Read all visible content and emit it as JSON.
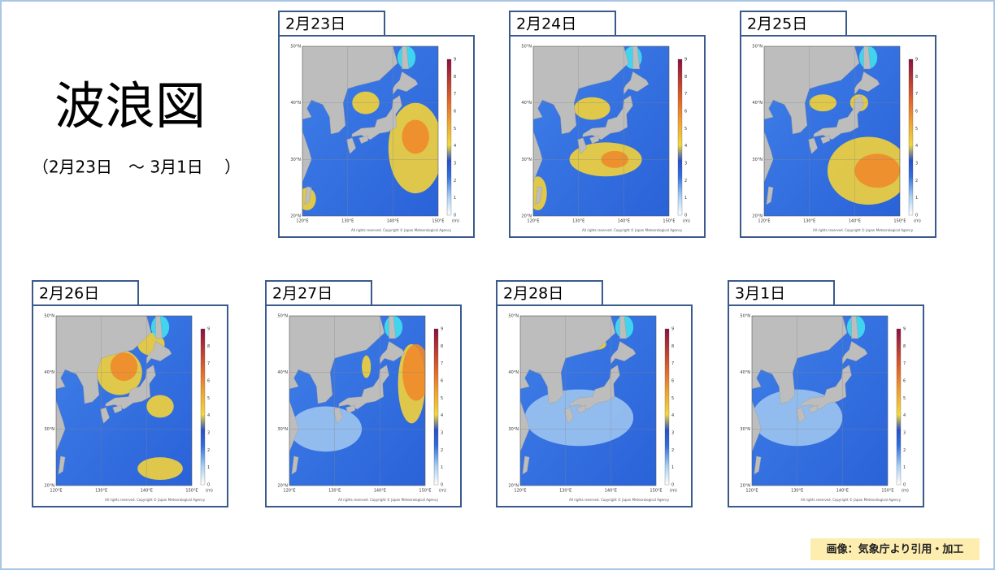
{
  "header": {
    "title": "波浪図",
    "subtitle": "（2月23日　～ 3月1日　 ）"
  },
  "panels": [
    {
      "label": "2月23日"
    },
    {
      "label": "2月24日"
    },
    {
      "label": "2月25日"
    },
    {
      "label": "2月26日"
    },
    {
      "label": "2月27日"
    },
    {
      "label": "2月28日"
    },
    {
      "label": "3月1日"
    }
  ],
  "map_axes": {
    "lat_labels": [
      "50°N",
      "40°N",
      "30°N",
      "20°N"
    ],
    "lon_labels": [
      "120°E",
      "130°E",
      "140°E",
      "150°E"
    ],
    "colorbar_ticks": [
      0,
      1,
      2,
      3,
      4,
      5,
      6,
      7,
      8,
      9
    ],
    "colorbar_unit": "(m)",
    "copyright": "All rights reserved. Copyright © Japan Meteorological Agency"
  },
  "footer": {
    "credit": "画像：気象庁より引用・加工"
  }
}
